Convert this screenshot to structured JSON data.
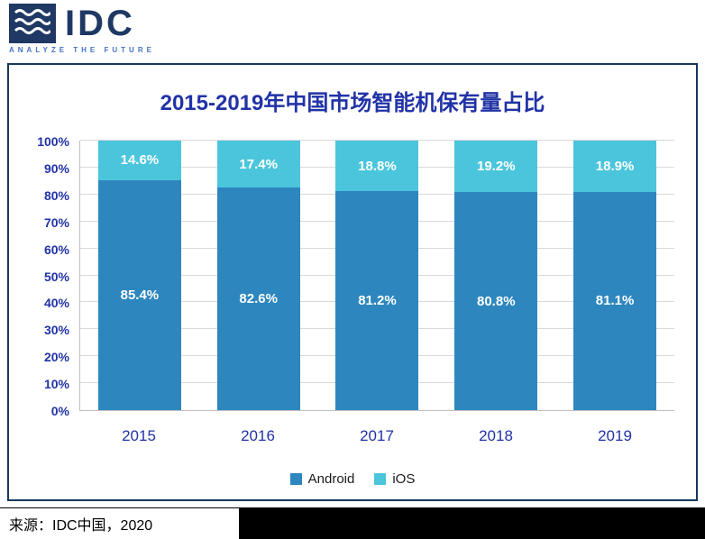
{
  "logo": {
    "name": "IDC",
    "tagline": "ANALYZE THE FUTURE"
  },
  "source": {
    "text": "来源：IDC中国，2020"
  },
  "colors": {
    "brand_navy": "#1F3864",
    "title_blue": "#2133A6",
    "axis_blue": "#2133A6",
    "gridline": "#D9D9D9",
    "android": "#2D87BE",
    "ios": "#4BC5DC"
  },
  "chart_data": {
    "type": "bar",
    "stacked": true,
    "percent_stacked": true,
    "title": "2015-2019年中国市场智能机保有量占比",
    "categories": [
      "2015",
      "2016",
      "2017",
      "2018",
      "2019"
    ],
    "series": [
      {
        "name": "Android",
        "color": "#2D87BE",
        "values": [
          85.4,
          82.6,
          81.2,
          80.8,
          81.1
        ]
      },
      {
        "name": "iOS",
        "color": "#4BC5DC",
        "values": [
          14.6,
          17.4,
          18.8,
          19.2,
          18.9
        ]
      }
    ],
    "ylim": [
      0,
      100
    ],
    "ytick_step": 10,
    "ytick_labels": [
      "0%",
      "10%",
      "20%",
      "30%",
      "40%",
      "50%",
      "60%",
      "70%",
      "80%",
      "90%",
      "100%"
    ],
    "grid": true,
    "legend_position": "bottom"
  }
}
